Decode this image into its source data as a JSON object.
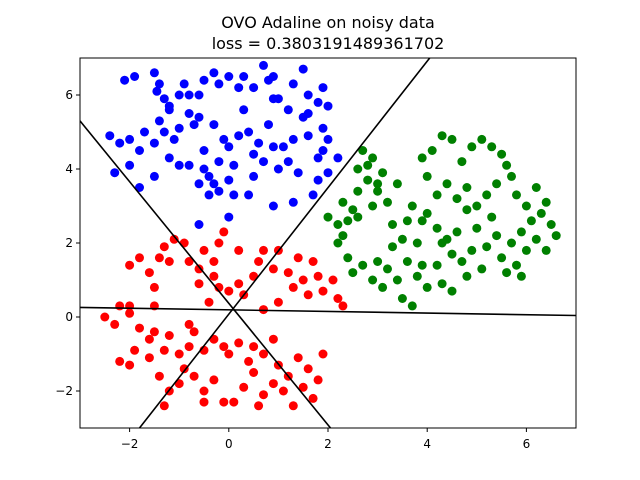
{
  "chart_data": {
    "type": "scatter",
    "title": "OVO Adaline on noisy data",
    "subtitle": "loss = 0.3803191489361702",
    "xlabel": "",
    "ylabel": "",
    "xlim": [
      -3,
      7
    ],
    "ylim": [
      -3,
      7
    ],
    "xticks": [
      -2,
      0,
      2,
      4,
      6
    ],
    "yticks": [
      -2,
      0,
      2,
      4,
      6
    ],
    "xtick_labels": [
      "−2",
      "0",
      "2",
      "4",
      "6"
    ],
    "ytick_labels": [
      "−2",
      "0",
      "2",
      "4",
      "6"
    ],
    "grid": false,
    "legend": "none",
    "colors": {
      "blue": "#0000ff",
      "green": "#008000",
      "red": "#ff0000",
      "lines": "#000000"
    },
    "series": [
      {
        "color": "blue",
        "points": [
          [
            -2.1,
            6.4
          ],
          [
            -1.9,
            6.5
          ],
          [
            -1.5,
            6.6
          ],
          [
            -1.45,
            6.1
          ],
          [
            -1.4,
            6.3
          ],
          [
            -1.3,
            5.9
          ],
          [
            -1.2,
            5.6
          ],
          [
            -1.0,
            6.0
          ],
          [
            -0.9,
            6.3
          ],
          [
            -0.8,
            6.0
          ],
          [
            -0.6,
            6.0
          ],
          [
            -0.6,
            5.4
          ],
          [
            -0.7,
            5.2
          ],
          [
            -0.5,
            6.4
          ],
          [
            -0.3,
            6.6
          ],
          [
            -0.2,
            6.3
          ],
          [
            0.0,
            6.5
          ],
          [
            0.2,
            6.2
          ],
          [
            0.3,
            6.5
          ],
          [
            0.5,
            6.2
          ],
          [
            0.7,
            6.8
          ],
          [
            0.8,
            6.4
          ],
          [
            0.9,
            6.5
          ],
          [
            1.0,
            5.9
          ],
          [
            1.2,
            5.6
          ],
          [
            1.3,
            6.3
          ],
          [
            1.5,
            6.7
          ],
          [
            1.6,
            6.0
          ],
          [
            1.8,
            5.8
          ],
          [
            1.9,
            6.2
          ],
          [
            1.9,
            5.1
          ],
          [
            2.0,
            5.7
          ],
          [
            2.0,
            4.8
          ],
          [
            2.2,
            4.3
          ],
          [
            -2.4,
            4.9
          ],
          [
            -2.2,
            4.7
          ],
          [
            -2.3,
            3.9
          ],
          [
            -2.0,
            4.8
          ],
          [
            -1.8,
            4.5
          ],
          [
            -1.7,
            5.0
          ],
          [
            -1.5,
            4.7
          ],
          [
            -1.4,
            5.3
          ],
          [
            -1.3,
            5.0
          ],
          [
            -1.1,
            4.8
          ],
          [
            -1.0,
            5.1
          ],
          [
            -0.8,
            5.5
          ],
          [
            -1.2,
            4.3
          ],
          [
            -1.0,
            4.1
          ],
          [
            -1.5,
            3.8
          ],
          [
            -1.8,
            3.5
          ],
          [
            -0.5,
            4.5
          ],
          [
            -0.5,
            4.0
          ],
          [
            -0.3,
            3.6
          ],
          [
            -0.2,
            4.2
          ],
          [
            0.0,
            4.6
          ],
          [
            0.1,
            4.1
          ],
          [
            0.2,
            4.9
          ],
          [
            0.4,
            5.0
          ],
          [
            0.6,
            4.7
          ],
          [
            0.7,
            4.2
          ],
          [
            0.8,
            5.2
          ],
          [
            0.9,
            4.6
          ],
          [
            1.0,
            4.0
          ],
          [
            1.2,
            4.2
          ],
          [
            1.3,
            4.8
          ],
          [
            1.4,
            3.9
          ],
          [
            1.5,
            5.4
          ],
          [
            1.6,
            4.9
          ],
          [
            1.8,
            4.3
          ],
          [
            1.8,
            3.7
          ],
          [
            1.9,
            4.5
          ],
          [
            2.0,
            3.9
          ],
          [
            1.3,
            3.1
          ],
          [
            1.7,
            3.3
          ],
          [
            0.9,
            3.0
          ],
          [
            -0.6,
            3.6
          ],
          [
            -0.4,
            3.3
          ],
          [
            -0.2,
            3.4
          ],
          [
            0.0,
            3.7
          ],
          [
            0.0,
            2.7
          ],
          [
            -0.6,
            2.5
          ],
          [
            0.4,
            3.3
          ],
          [
            0.1,
            3.3
          ],
          [
            -0.8,
            4.1
          ],
          [
            -0.4,
            3.8
          ],
          [
            0.5,
            4.4
          ],
          [
            1.1,
            4.6
          ],
          [
            -0.3,
            5.2
          ],
          [
            0.3,
            5.6
          ],
          [
            0.9,
            5.9
          ],
          [
            -1.2,
            5.7
          ],
          [
            -2.0,
            4.1
          ],
          [
            1.6,
            5.5
          ],
          [
            0.5,
            3.8
          ],
          [
            -0.1,
            4.8
          ]
        ]
      },
      {
        "color": "green",
        "points": [
          [
            2.0,
            2.7
          ],
          [
            2.2,
            2.5
          ],
          [
            2.3,
            2.2
          ],
          [
            2.4,
            2.6
          ],
          [
            2.5,
            2.9
          ],
          [
            2.6,
            2.7
          ],
          [
            2.3,
            3.1
          ],
          [
            2.6,
            3.4
          ],
          [
            2.8,
            3.7
          ],
          [
            2.9,
            3.0
          ],
          [
            3.0,
            3.4
          ],
          [
            2.6,
            4.0
          ],
          [
            2.7,
            4.5
          ],
          [
            2.9,
            4.3
          ],
          [
            3.0,
            3.6
          ],
          [
            3.2,
            3.1
          ],
          [
            3.3,
            2.5
          ],
          [
            3.5,
            2.1
          ],
          [
            3.6,
            2.6
          ],
          [
            3.7,
            3.0
          ],
          [
            2.2,
            2.0
          ],
          [
            2.4,
            1.6
          ],
          [
            2.5,
            1.2
          ],
          [
            2.7,
            1.4
          ],
          [
            2.9,
            1.0
          ],
          [
            3.0,
            1.5
          ],
          [
            3.1,
            0.8
          ],
          [
            3.2,
            1.3
          ],
          [
            3.3,
            1.9
          ],
          [
            3.4,
            1.0
          ],
          [
            3.5,
            0.5
          ],
          [
            3.6,
            1.5
          ],
          [
            3.7,
            0.3
          ],
          [
            3.8,
            1.1
          ],
          [
            3.9,
            1.4
          ],
          [
            4.0,
            0.8
          ],
          [
            4.2,
            1.4
          ],
          [
            4.3,
            0.9
          ],
          [
            4.4,
            2.1
          ],
          [
            4.5,
            1.7
          ],
          [
            4.6,
            2.3
          ],
          [
            4.7,
            1.5
          ],
          [
            4.8,
            1.1
          ],
          [
            4.9,
            1.8
          ],
          [
            5.0,
            2.4
          ],
          [
            5.1,
            1.3
          ],
          [
            5.2,
            1.9
          ],
          [
            5.4,
            2.2
          ],
          [
            5.5,
            1.6
          ],
          [
            5.6,
            1.2
          ],
          [
            5.7,
            2.0
          ],
          [
            5.8,
            1.4
          ],
          [
            5.9,
            2.3
          ],
          [
            6.0,
            1.8
          ],
          [
            6.1,
            2.6
          ],
          [
            6.2,
            2.1
          ],
          [
            6.3,
            2.8
          ],
          [
            6.4,
            3.1
          ],
          [
            6.5,
            2.5
          ],
          [
            6.4,
            1.8
          ],
          [
            6.2,
            3.5
          ],
          [
            6.0,
            3.0
          ],
          [
            5.8,
            3.3
          ],
          [
            5.7,
            3.8
          ],
          [
            5.6,
            4.1
          ],
          [
            5.5,
            4.4
          ],
          [
            5.3,
            4.6
          ],
          [
            5.1,
            4.8
          ],
          [
            4.9,
            4.6
          ],
          [
            4.7,
            4.2
          ],
          [
            4.5,
            4.8
          ],
          [
            4.3,
            4.9
          ],
          [
            4.1,
            4.5
          ],
          [
            3.9,
            4.3
          ],
          [
            4.0,
            3.8
          ],
          [
            4.2,
            3.3
          ],
          [
            4.4,
            3.6
          ],
          [
            4.6,
            3.2
          ],
          [
            4.8,
            3.5
          ],
          [
            5.0,
            3.0
          ],
          [
            5.2,
            3.3
          ],
          [
            5.4,
            3.6
          ],
          [
            4.0,
            2.8
          ],
          [
            4.2,
            2.4
          ],
          [
            3.8,
            2.0
          ],
          [
            4.8,
            2.9
          ],
          [
            5.3,
            2.7
          ],
          [
            5.9,
            1.1
          ],
          [
            6.6,
            2.2
          ],
          [
            3.4,
            3.6
          ],
          [
            3.1,
            3.9
          ],
          [
            2.8,
            4.1
          ],
          [
            4.5,
            0.7
          ],
          [
            3.9,
            2.6
          ],
          [
            4.3,
            2.0
          ]
        ]
      },
      {
        "color": "red",
        "points": [
          [
            -2.0,
            1.4
          ],
          [
            -1.8,
            1.6
          ],
          [
            -1.6,
            1.2
          ],
          [
            -1.5,
            0.8
          ],
          [
            -1.4,
            1.6
          ],
          [
            -1.3,
            1.9
          ],
          [
            -1.2,
            1.5
          ],
          [
            -1.1,
            2.1
          ],
          [
            -0.9,
            2.0
          ],
          [
            -0.8,
            1.5
          ],
          [
            -0.6,
            1.3
          ],
          [
            -0.5,
            1.8
          ],
          [
            -0.3,
            1.5
          ],
          [
            -0.2,
            2.0
          ],
          [
            -0.1,
            2.3
          ],
          [
            -0.3,
            1.1
          ],
          [
            -0.6,
            0.9
          ],
          [
            -0.4,
            0.4
          ],
          [
            -0.2,
            0.8
          ],
          [
            0.0,
            0.7
          ],
          [
            0.2,
            0.9
          ],
          [
            0.3,
            0.6
          ],
          [
            0.5,
            1.1
          ],
          [
            0.6,
            1.5
          ],
          [
            0.7,
            1.8
          ],
          [
            0.9,
            1.3
          ],
          [
            1.0,
            1.8
          ],
          [
            1.2,
            1.2
          ],
          [
            1.3,
            0.8
          ],
          [
            1.4,
            1.6
          ],
          [
            1.5,
            1.0
          ],
          [
            1.6,
            0.6
          ],
          [
            1.7,
            1.5
          ],
          [
            1.8,
            1.1
          ],
          [
            1.9,
            0.7
          ],
          [
            2.1,
            1.0
          ],
          [
            2.2,
            0.5
          ],
          [
            2.3,
            0.3
          ],
          [
            -2.5,
            0.0
          ],
          [
            -2.3,
            -0.2
          ],
          [
            -2.2,
            0.3
          ],
          [
            -2.0,
            0.1
          ],
          [
            -1.8,
            -0.3
          ],
          [
            -1.6,
            -0.6
          ],
          [
            -1.5,
            -0.4
          ],
          [
            -1.3,
            -0.9
          ],
          [
            -1.2,
            -0.5
          ],
          [
            -1.0,
            -1.0
          ],
          [
            -0.8,
            -0.8
          ],
          [
            -0.7,
            -0.4
          ],
          [
            -0.5,
            -0.9
          ],
          [
            -0.3,
            -0.6
          ],
          [
            -0.1,
            -0.8
          ],
          [
            0.0,
            -1.0
          ],
          [
            0.2,
            -0.7
          ],
          [
            0.4,
            -1.2
          ],
          [
            0.5,
            -0.8
          ],
          [
            0.7,
            -1.0
          ],
          [
            0.9,
            -0.6
          ],
          [
            1.0,
            -1.3
          ],
          [
            1.2,
            -1.6
          ],
          [
            1.4,
            -1.1
          ],
          [
            1.6,
            -1.4
          ],
          [
            1.8,
            -1.7
          ],
          [
            1.9,
            -1.0
          ],
          [
            -2.2,
            -1.2
          ],
          [
            -2.0,
            -1.3
          ],
          [
            -1.9,
            -0.9
          ],
          [
            -1.6,
            -1.1
          ],
          [
            -1.4,
            -1.6
          ],
          [
            -1.2,
            -2.0
          ],
          [
            -1.0,
            -1.8
          ],
          [
            -0.9,
            -1.4
          ],
          [
            -0.7,
            -1.6
          ],
          [
            -0.5,
            -2.0
          ],
          [
            -0.3,
            -1.7
          ],
          [
            -0.1,
            -2.3
          ],
          [
            0.1,
            -2.3
          ],
          [
            0.3,
            -1.9
          ],
          [
            0.5,
            -1.5
          ],
          [
            0.7,
            -2.1
          ],
          [
            0.9,
            -1.8
          ],
          [
            1.1,
            -2.0
          ],
          [
            1.3,
            -2.4
          ],
          [
            1.5,
            -1.9
          ],
          [
            1.7,
            -2.2
          ],
          [
            -1.3,
            -2.4
          ],
          [
            -0.5,
            -2.3
          ],
          [
            0.6,
            -2.4
          ],
          [
            -2.0,
            0.3
          ],
          [
            -1.5,
            0.3
          ],
          [
            1.0,
            0.4
          ],
          [
            0.7,
            0.2
          ],
          [
            -0.8,
            -0.2
          ],
          [
            0.2,
            1.8
          ]
        ]
      }
    ],
    "lines": [
      {
        "x": [
          -3.0,
          7.0
        ],
        "y": [
          0.26,
          0.04
        ]
      },
      {
        "x": [
          -3.0,
          2.05
        ],
        "y": [
          5.3,
          -3.0
        ]
      },
      {
        "x": [
          -1.8,
          4.05
        ],
        "y": [
          -3.0,
          7.0
        ]
      }
    ]
  }
}
